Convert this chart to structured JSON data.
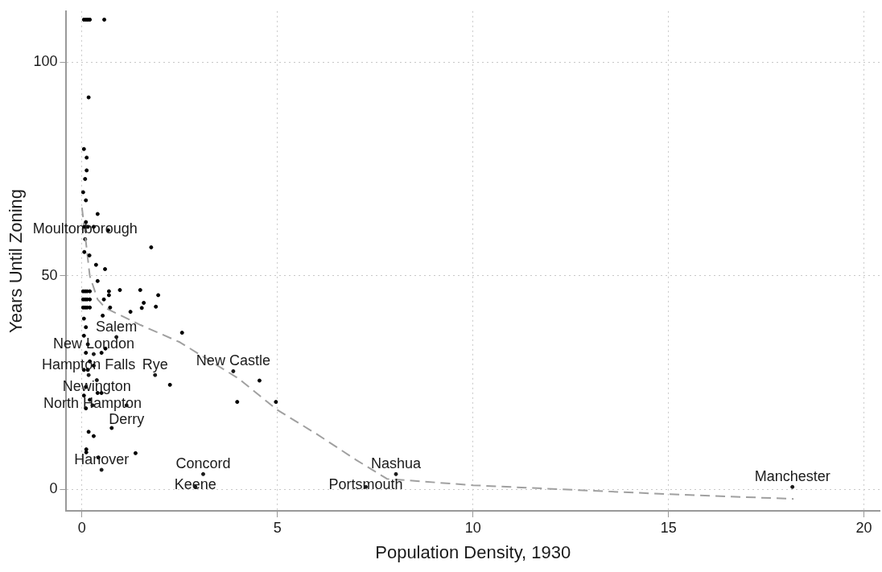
{
  "chart_data": {
    "type": "scatter",
    "xlabel": "Population Density, 1930",
    "ylabel": "Years Until Zoning",
    "xlim": [
      -0.4,
      20.4
    ],
    "xticks": [
      0,
      5,
      10,
      15,
      20
    ],
    "ylim": [
      -5,
      112
    ],
    "yticks": [
      0,
      50,
      100
    ],
    "grid": true,
    "legend": false,
    "marker": "circle",
    "series": [
      {
        "color": "#000000",
        "x": [
          0.05,
          0.1,
          0.15,
          0.2,
          0.57,
          0.17,
          0.05,
          0.12,
          0.12,
          0.08,
          0.03,
          0.1,
          0.4,
          0.1,
          0.06,
          0.15,
          0.3,
          0.67,
          1.77,
          0.06,
          0.19,
          0.36,
          0.59,
          0.4,
          0.03,
          0.08,
          0.13,
          0.2,
          0.69,
          0.97,
          1.49,
          1.95,
          0.69,
          0.03,
          0.08,
          0.13,
          0.2,
          0.56,
          1.58,
          1.89,
          0.03,
          0.08,
          0.13,
          0.2,
          0.72,
          1.53,
          1.24,
          0.53,
          2.56,
          4.54,
          2.25,
          3.97,
          4.96,
          0.76,
          0.17,
          0.3,
          0.11,
          0.11,
          0.42,
          1.37,
          0.5,
          0.4,
          0.05,
          0.1,
          0.05,
          0.15,
          0.1,
          0.2,
          0.05,
          0.15,
          0.3,
          0.1,
          0.05,
          0.2,
          0.1,
          0.5,
          0.6
        ],
        "values": [
          110,
          110,
          110,
          110,
          110,
          91.8,
          79.7,
          77.7,
          74.7,
          72.7,
          69.6,
          67.7,
          64.5,
          62.6,
          61.5,
          61.5,
          61.5,
          60.7,
          56.7,
          55.6,
          54.8,
          52.6,
          51.6,
          48.8,
          46.4,
          46.4,
          46.4,
          46.4,
          46.4,
          46.7,
          46.7,
          45.5,
          45.5,
          44.5,
          44.5,
          44.5,
          44.5,
          44.5,
          43.7,
          42.8,
          42.6,
          42.6,
          42.6,
          42.6,
          42.6,
          42.5,
          41.6,
          40.7,
          36.7,
          25.5,
          24.5,
          20.5,
          20.5,
          14.4,
          13.5,
          12.5,
          9.4,
          8.7,
          7.5,
          8.5,
          22.6,
          22.6,
          40,
          38,
          36,
          34,
          32,
          30,
          28,
          28,
          29,
          24,
          22,
          21,
          19,
          32,
          33
        ]
      },
      {
        "type": "line",
        "color": "#a0a0a0",
        "line_style": "dashed",
        "marker": "none",
        "x": [
          0,
          0.1,
          0.2,
          0.4,
          0.6,
          1.5,
          2.5,
          4,
          5,
          6,
          7,
          7.8,
          10,
          15,
          18.2
        ],
        "values": [
          66,
          58,
          50,
          44.5,
          42.5,
          38.5,
          34.5,
          26,
          18.6,
          13,
          7,
          2.5,
          1,
          -1.1,
          -2.2
        ]
      },
      {
        "color": "#1a1a1a",
        "x": [
          0.08,
          0.88,
          0.3,
          0.17,
          1.87,
          0.38,
          3.87,
          0.27,
          1.14,
          0.5,
          3.1,
          2.9,
          8.03,
          7.26,
          18.17
        ],
        "values": [
          58.6,
          35.7,
          31.7,
          26.8,
          26.8,
          25.6,
          27.7,
          19.7,
          19.7,
          4.6,
          3.6,
          0.6,
          3.6,
          0.6,
          0.6
        ],
        "value_labels": [
          "Moultonborough",
          "Salem",
          "New London",
          "Hampton Falls",
          "Rye",
          "Newington",
          "New Castle",
          "North Hampton",
          "Derry",
          "Hanover",
          "Concord",
          "Keene",
          "Nashua",
          "Portsmouth",
          "Manchester"
        ]
      }
    ]
  }
}
